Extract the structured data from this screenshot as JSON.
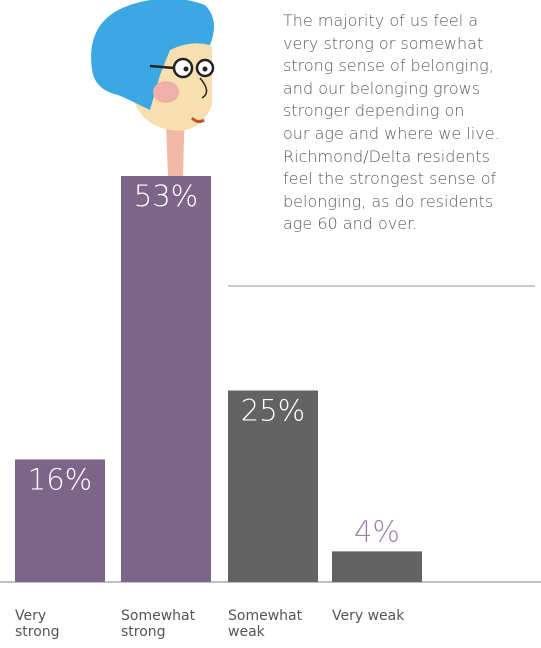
{
  "chart_data": {
    "type": "bar",
    "annotation": [
      "The majority of us feel a",
      "very strong or somewhat",
      "strong sense of belonging,",
      "and our belonging grows",
      "stronger depending on",
      "our age and where we live.",
      "Richmond/Delta residents",
      "feel the strongest sense of",
      "belonging, as do residents",
      "age 60 and over."
    ],
    "categories": [
      "Very strong",
      "Somewhat strong",
      "Somewhat weak",
      "Very weak"
    ],
    "values": [
      16,
      53,
      25,
      4
    ],
    "value_labels": [
      "16%",
      "53%",
      "25%",
      "4%"
    ],
    "colors": [
      "#7d6589",
      "#7d6589",
      "#636363",
      "#636363"
    ]
  }
}
